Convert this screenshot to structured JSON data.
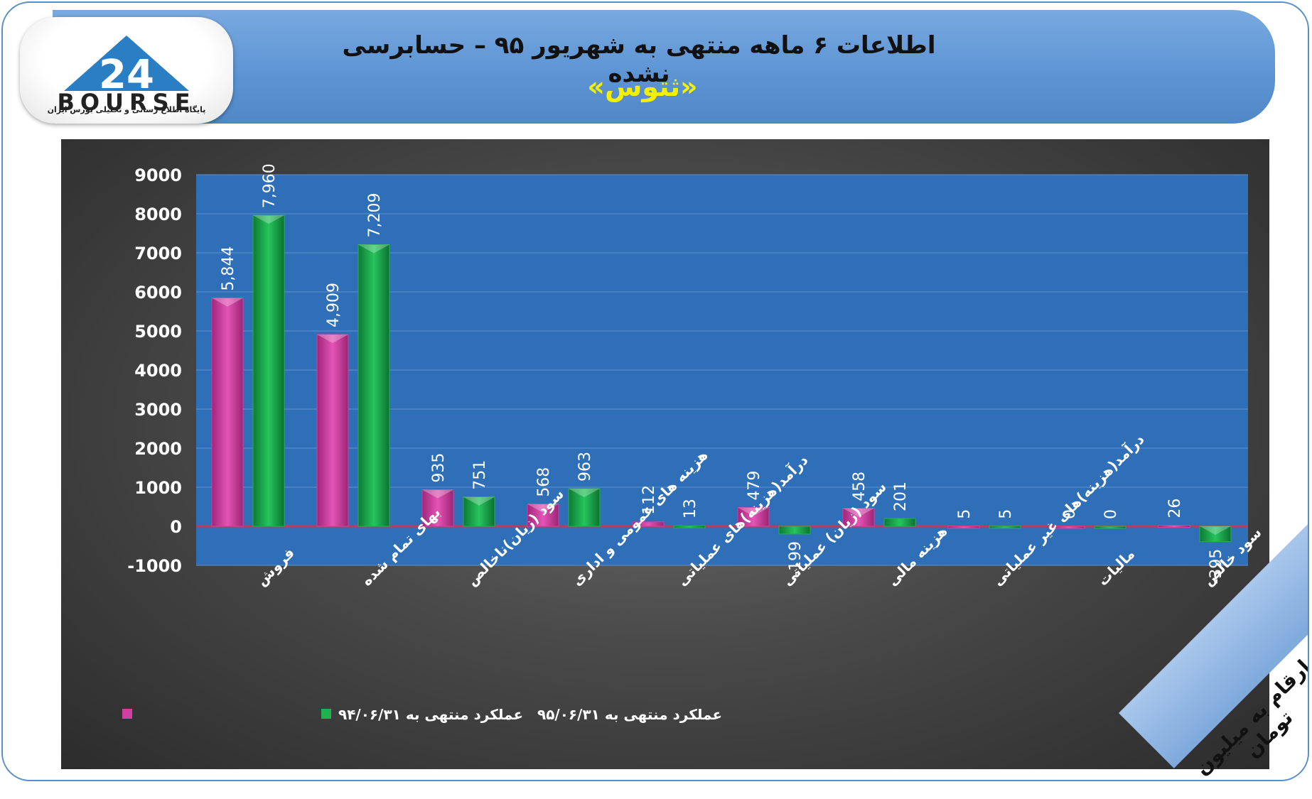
{
  "header": {
    "title": "اطلاعات ۶ ماهه منتهی به شهریور ۹۵ – حسابرسی نشده",
    "subtitle": "«ثتوس»"
  },
  "logo": {
    "brand": "BOURSE",
    "number": "24",
    "tagline": "پایگاه اطلاع رسانی و تحلیلی بورس ایران"
  },
  "unit_note": "ارقام به میلیون تومان",
  "colors": {
    "series_1": "#d23fa3",
    "series_2": "#1fb24f",
    "plot_bg": "#2f6fb8",
    "zero_line": "#c0395a"
  },
  "chart_data": {
    "type": "bar",
    "categories": [
      "فروش",
      "بهای تمام شده",
      "سود (زیان)ناخالص",
      "هزینه های عمومی و اداری",
      "درآمد(هزینه)های عملیاتی",
      "سود (زیان) عملیاتی",
      "هزینه مالی",
      "درآمد(هزینه)های غیر عملیاتی",
      "مالیات",
      "سود خالص"
    ],
    "series": [
      {
        "name": "عملکرد منتهی به ۹۴/۰۶/۳۱",
        "values": [
          5844,
          4909,
          935,
          568,
          112,
          479,
          458,
          5,
          0,
          26
        ],
        "labels": [
          "5,844",
          "4,909",
          "935",
          "568",
          "112",
          "479",
          "458",
          "5",
          "0",
          "26"
        ]
      },
      {
        "name": "عملکرد منتهی به ۹۵/۰۶/۳۱",
        "values": [
          7960,
          7209,
          751,
          963,
          13,
          -199,
          201,
          5,
          0,
          -395
        ],
        "labels": [
          "7,960",
          "7,209",
          "751",
          "963",
          "13",
          "-199",
          "201",
          "5",
          "0",
          "-395"
        ]
      }
    ],
    "ylim": [
      -1000,
      9000
    ],
    "yticks": [
      "9000",
      "8000",
      "7000",
      "6000",
      "5000",
      "4000",
      "3000",
      "2000",
      "1000",
      "0",
      "-1000"
    ],
    "grid": true,
    "legend": "bottom-left"
  }
}
